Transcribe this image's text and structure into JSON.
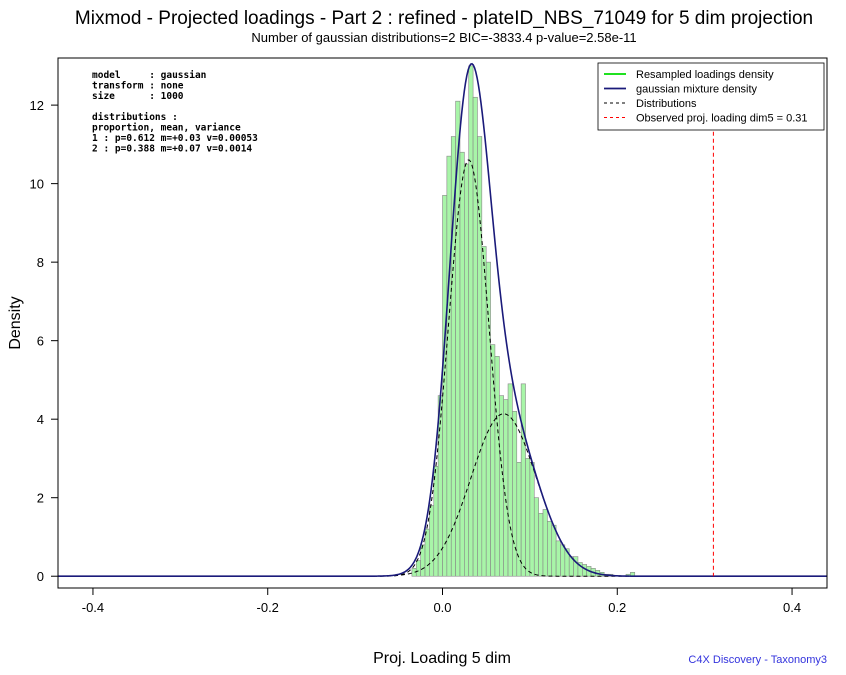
{
  "chart_data": {
    "type": "histogram",
    "title": "Mixmod - Projected loadings - Part 2 : refined - plateID_NBS_71049 for 5 dim projection",
    "subtitle": "Number of gaussian distributions=2  BIC=-3833.4   p-value=2.58e-11",
    "xlabel": "Proj. Loading 5 dim",
    "ylabel": "Density",
    "xlim": [
      -0.44,
      0.44
    ],
    "ylim": [
      -0.3,
      13.2
    ],
    "x_ticks": [
      "-0.4",
      "-0.2",
      "0.0",
      "0.2",
      "0.4"
    ],
    "x_tick_values": [
      -0.4,
      -0.2,
      0.0,
      0.2,
      0.4
    ],
    "y_ticks": [
      "0",
      "2",
      "4",
      "6",
      "8",
      "10",
      "12"
    ],
    "y_tick_values": [
      0,
      2,
      4,
      6,
      8,
      10,
      12
    ],
    "grid": false,
    "legend_position": "top-right",
    "histogram": {
      "bin_width": 0.005,
      "bins_start": [
        -0.035,
        -0.03,
        -0.025,
        -0.02,
        -0.015,
        -0.01,
        -0.005,
        0.0,
        0.005,
        0.01,
        0.015,
        0.02,
        0.025,
        0.03,
        0.035,
        0.04,
        0.045,
        0.05,
        0.055,
        0.06,
        0.065,
        0.07,
        0.075,
        0.08,
        0.085,
        0.09,
        0.095,
        0.1,
        0.105,
        0.11,
        0.115,
        0.12,
        0.125,
        0.13,
        0.135,
        0.14,
        0.145,
        0.15,
        0.155,
        0.16,
        0.165,
        0.17,
        0.175,
        0.18,
        0.185,
        0.19,
        0.195,
        0.2,
        0.205,
        0.21,
        0.215
      ],
      "density": [
        0.2,
        0.4,
        0.8,
        1.2,
        1.8,
        2.8,
        4.6,
        9.7,
        10.7,
        11.2,
        12.1,
        10.8,
        10.5,
        13.0,
        12.2,
        11.2,
        8.4,
        8.0,
        5.9,
        5.6,
        4.6,
        4.5,
        4.9,
        4.2,
        2.9,
        4.9,
        3.0,
        2.9,
        2.0,
        1.6,
        1.7,
        1.4,
        1.3,
        0.9,
        0.8,
        0.7,
        0.5,
        0.5,
        0.35,
        0.3,
        0.25,
        0.2,
        0.15,
        0.1,
        0.05,
        0.05,
        0.0,
        0.0,
        0.0,
        0.05,
        0.1
      ]
    },
    "components": [
      {
        "label": "1",
        "proportion": 0.612,
        "mean": 0.03,
        "variance": 0.00053
      },
      {
        "label": "2",
        "proportion": 0.388,
        "mean": 0.07,
        "variance": 0.0014
      }
    ],
    "observed_loading": 0.31,
    "series": [
      {
        "name": "Resampled loadings density",
        "color": "#00dd00",
        "style": "solid"
      },
      {
        "name": "gaussian mixture density",
        "color": "#1a1a7a",
        "style": "solid"
      },
      {
        "name": "Distributions",
        "color": "#000000",
        "style": "dashed"
      },
      {
        "name": "Observed proj. loading dim5 = 0.31",
        "color": "#ff0000",
        "style": "dashed"
      }
    ],
    "colors": {
      "bar_fill": "#a8f5a8",
      "bar_stroke": "#888888",
      "mixture": "#1a1a7a",
      "components": "#000000",
      "observed": "#ff0000"
    }
  },
  "info_box": {
    "lines": [
      "model     : gaussian",
      "transform : none",
      "size      : 1000",
      "",
      "distributions :",
      "proportion, mean, variance",
      "1 : p=0.612 m=+0.03 v=0.00053",
      "2 : p=0.388 m=+0.07 v=0.0014"
    ]
  },
  "credit": {
    "text": "C4X Discovery - Taxonomy3",
    "color": "#3333dd"
  }
}
